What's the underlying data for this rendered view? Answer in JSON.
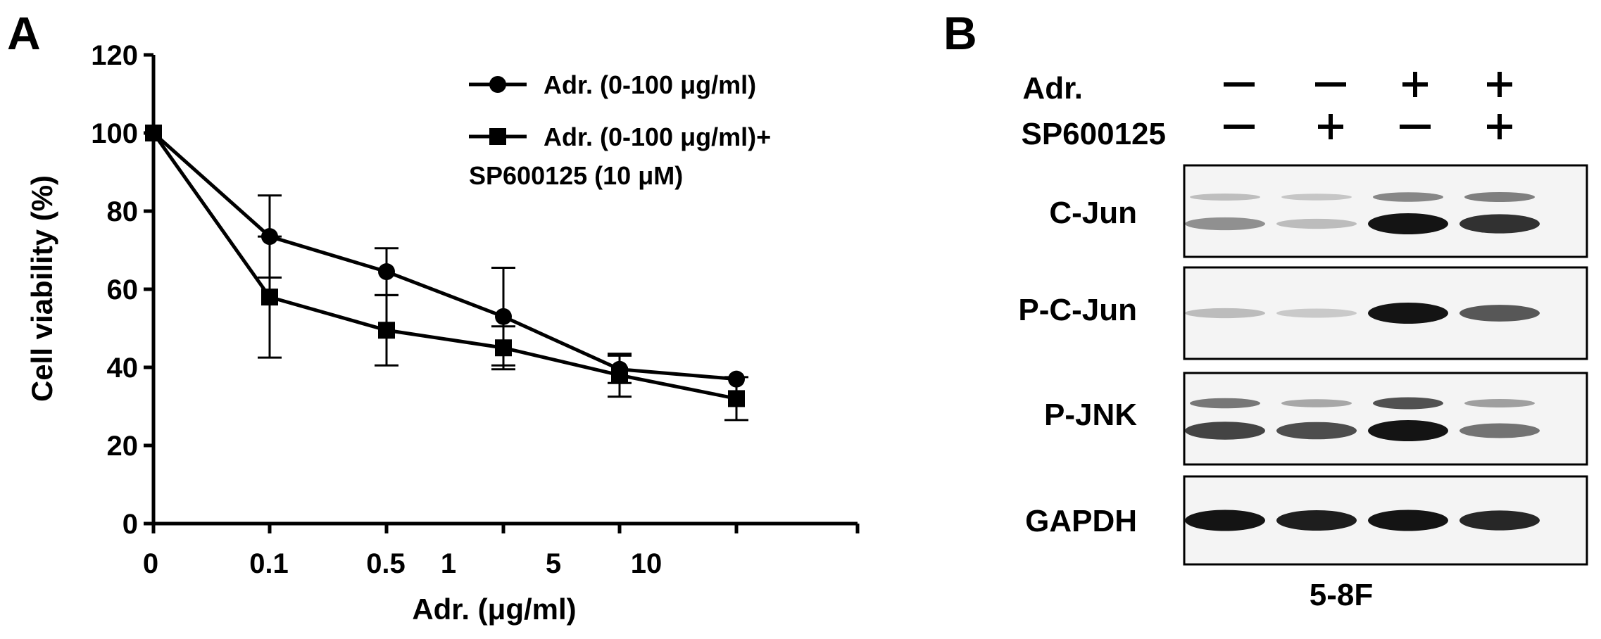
{
  "panels": {
    "a_letter": "A",
    "b_letter": "B"
  },
  "chart_data": {
    "type": "line",
    "title": "",
    "xlabel": "Adr. (μg/ml)",
    "ylabel": "Cell viability (%)",
    "x_categories": [
      "0",
      "0.1",
      "0.5",
      "1",
      "5",
      "10"
    ],
    "ylim": [
      0,
      120
    ],
    "yticks": [
      0,
      20,
      40,
      60,
      80,
      100,
      120
    ],
    "series": [
      {
        "name": "Adr. (0-100 μg/ml)",
        "marker": "circle",
        "points": [
          {
            "x": "0",
            "y": 100,
            "err": 0
          },
          {
            "x": "0.1",
            "y": 73.5,
            "err": 10.5
          },
          {
            "x": "0.5",
            "y": 64.5,
            "err": 6
          },
          {
            "x": "1-5",
            "y": 53,
            "err": 12.5
          },
          {
            "x": "10",
            "y": 39.5,
            "err": 3.5
          },
          {
            "x": "100",
            "y": 37,
            "err": 0
          }
        ]
      },
      {
        "name": "Adr. (0-100 μg/ml)+ SP600125 (10 μM)",
        "name_lines": [
          "Adr. (0-100 μg/ml)+",
          "SP600125 (10 μM)"
        ],
        "marker": "square",
        "points": [
          {
            "x": "0",
            "y": 100,
            "err": 0
          },
          {
            "x": "0.1",
            "y": 58,
            "err": 15.5
          },
          {
            "x": "0.5",
            "y": 49.5,
            "err": 9
          },
          {
            "x": "1-5",
            "y": 45,
            "err": 5.5
          },
          {
            "x": "10",
            "y": 38,
            "err": 5.5
          },
          {
            "x": "100",
            "y": 32,
            "err": 5.5
          }
        ]
      }
    ],
    "legend_position": "top-right",
    "grid": false
  },
  "blot": {
    "treatments": [
      {
        "label": "Adr.",
        "signs": [
          "−",
          "−",
          "+",
          "+"
        ]
      },
      {
        "label": "SP600125",
        "signs": [
          "−",
          "+",
          "−",
          "+"
        ]
      }
    ],
    "rows": [
      {
        "label": "C-Jun",
        "intensities": [
          0.35,
          0.12,
          1.0,
          0.85
        ],
        "upper": [
          0.2,
          0.15,
          0.55,
          0.6
        ]
      },
      {
        "label": "P-C-Jun",
        "intensities": [
          0.12,
          0.05,
          1.0,
          0.65
        ],
        "upper": [
          0,
          0,
          0,
          0
        ]
      },
      {
        "label": "P-JNK",
        "intensities": [
          0.75,
          0.7,
          1.0,
          0.5
        ],
        "upper": [
          0.65,
          0.35,
          0.9,
          0.4
        ]
      },
      {
        "label": "GAPDH",
        "intensities": [
          1.0,
          0.95,
          1.0,
          0.9
        ],
        "upper": [
          0,
          0,
          0,
          0
        ]
      }
    ],
    "cell_line": "5-8F"
  },
  "colors": {
    "ink": "#000000",
    "membrane": "#f4f4f4",
    "band": "#141414"
  }
}
